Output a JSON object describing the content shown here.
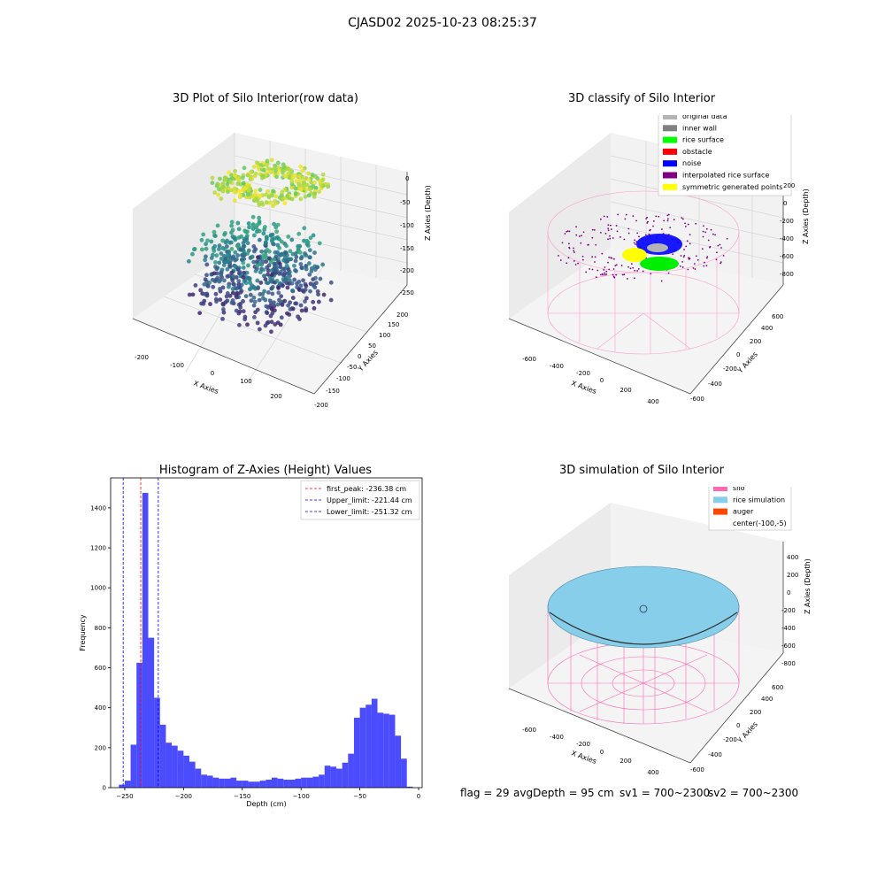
{
  "suptitle": "CJASD02 2025-10-23 08:25:37",
  "panels": {
    "raw": {
      "title": "3D Plot of Silo Interior(row data)",
      "xlabel": "X Axies",
      "ylabel": "Y Axies",
      "zlabel": "Z Axies (Depth)",
      "xticks": [
        "-200",
        "-100",
        "0",
        "100",
        "200"
      ],
      "yticks": [
        "-200",
        "-150",
        "-100",
        "-50",
        "0",
        "50",
        "100",
        "150",
        "200"
      ],
      "zticks": [
        "0",
        "-50",
        "-100",
        "-150",
        "-200",
        "-250"
      ]
    },
    "classify": {
      "title": "3D classify of Silo Interior",
      "xlabel": "X Axies",
      "ylabel": "Y Axies",
      "zlabel": "Z Axies (Depth)",
      "xticks": [
        "-600",
        "-400",
        "-200",
        "0",
        "200",
        "400"
      ],
      "yticks": [
        "-600",
        "-400",
        "-200",
        "0",
        "200",
        "400",
        "600"
      ],
      "zticks": [
        "200",
        "0",
        "-200",
        "-400",
        "-600",
        "-800"
      ],
      "legend": [
        {
          "label": "original data",
          "color": "#b4b4b4"
        },
        {
          "label": "inner wall",
          "color": "#808080"
        },
        {
          "label": "rice surface",
          "color": "#00ff00"
        },
        {
          "label": "obstacle",
          "color": "#ff0000"
        },
        {
          "label": "noise",
          "color": "#0000ff"
        },
        {
          "label": "interpolated rice surface",
          "color": "#800080"
        },
        {
          "label": "symmetric generated points",
          "color": "#ffff00"
        }
      ]
    },
    "simulation": {
      "title": "3D simulation of Silo Interior",
      "xlabel": "X Axies",
      "ylabel": "Y Axies",
      "zlabel": "Z Axies (Depth)",
      "xticks": [
        "-600",
        "-400",
        "-200",
        "0",
        "200",
        "400"
      ],
      "yticks": [
        "-600",
        "-400",
        "-200",
        "0",
        "200",
        "400",
        "600"
      ],
      "zticks": [
        "400",
        "200",
        "0",
        "-200",
        "-400",
        "-600",
        "-800"
      ],
      "legend": [
        {
          "label": "silo",
          "color": "#ff69b4"
        },
        {
          "label": "rice simulation",
          "color": "#87ceeb"
        },
        {
          "label": "auger",
          "color": "#ff4500"
        },
        {
          "label": "center(-100,-5)",
          "color": ""
        }
      ]
    }
  },
  "footer": {
    "flag": "flag = 29",
    "avg": "avgDepth = 95 cm",
    "sv1": "sv1 = 700~2300",
    "sv2": "sv2 = 700~2300"
  },
  "chart_data": {
    "type": "bar",
    "title": "Histogram of Z-Axies (Height) Values",
    "xlabel": "Depth (cm)",
    "ylabel": "Frequency",
    "xlim": [
      -262,
      3
    ],
    "ylim": [
      0,
      1550
    ],
    "xticks": [
      -250,
      -200,
      -150,
      -100,
      -50,
      0
    ],
    "yticks": [
      0,
      200,
      400,
      600,
      800,
      1000,
      1200,
      1400
    ],
    "bin_width": 5,
    "bins_left": [
      -255,
      -250,
      -245,
      -240,
      -235,
      -230,
      -225,
      -220,
      -215,
      -210,
      -205,
      -200,
      -195,
      -190,
      -185,
      -180,
      -175,
      -170,
      -165,
      -160,
      -155,
      -150,
      -145,
      -140,
      -135,
      -130,
      -125,
      -120,
      -115,
      -110,
      -105,
      -100,
      -95,
      -90,
      -85,
      -80,
      -75,
      -70,
      -65,
      -60,
      -55,
      -50,
      -45,
      -40,
      -35,
      -30,
      -25,
      -20,
      -15,
      -10
    ],
    "counts": [
      15,
      35,
      215,
      625,
      1475,
      750,
      450,
      315,
      225,
      210,
      185,
      160,
      130,
      95,
      65,
      60,
      50,
      45,
      45,
      50,
      35,
      35,
      30,
      30,
      35,
      40,
      50,
      45,
      40,
      40,
      45,
      50,
      50,
      55,
      65,
      110,
      105,
      95,
      125,
      170,
      350,
      400,
      415,
      445,
      375,
      370,
      365,
      260,
      145,
      5
    ],
    "bar_color": "#0000ff",
    "vlines": [
      {
        "name": "first_peak: -236.38 cm",
        "x": -236.38,
        "color": "#ff0000"
      },
      {
        "name": "Upper_limit: -221.44 cm",
        "x": -221.44,
        "color": "#0000ff"
      },
      {
        "name": "Lower_limit: -251.32 cm",
        "x": -251.32,
        "color": "#0000ff"
      }
    ]
  }
}
